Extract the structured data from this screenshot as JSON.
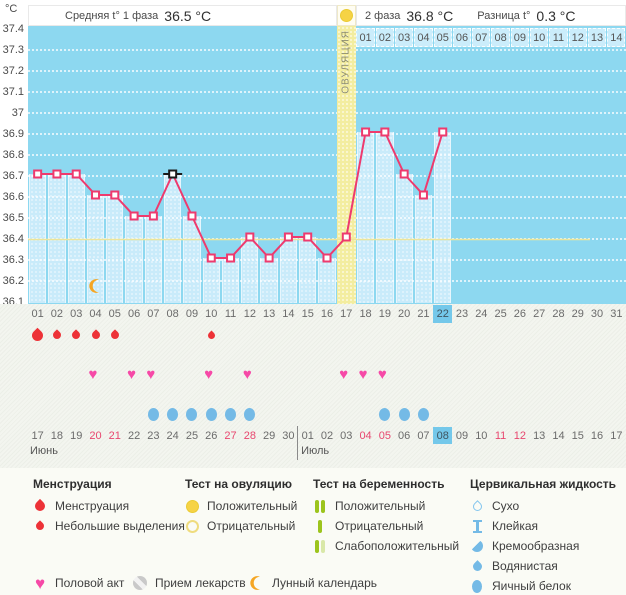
{
  "header": {
    "unit_label": "°C",
    "phase1_label": "Средняя t° 1 фаза",
    "phase1_value": "36.5 °C",
    "phase2_label": "2 фаза",
    "phase2_value": "36.8 °C",
    "diff_label": "Разница t°",
    "diff_value": "0.3 °C"
  },
  "chart_data": {
    "type": "line",
    "ylabel": "°C",
    "ylim": [
      36.1,
      37.4
    ],
    "yticks": [
      "37.4",
      "37.3",
      "37.2",
      "37.1",
      "37",
      "36.9",
      "36.8",
      "36.7",
      "36.6",
      "36.5",
      "36.4",
      "36.3",
      "36.2",
      "36.1"
    ],
    "x_days": [
      "01",
      "02",
      "03",
      "04",
      "05",
      "06",
      "07",
      "08",
      "09",
      "10",
      "11",
      "12",
      "13",
      "14",
      "15",
      "16",
      "17",
      "18",
      "19",
      "20",
      "21",
      "22",
      "23",
      "24",
      "25",
      "26",
      "27",
      "28",
      "29",
      "30",
      "31"
    ],
    "series": [
      {
        "name": "temperature",
        "values": [
          36.7,
          36.7,
          36.7,
          36.6,
          36.6,
          36.5,
          36.5,
          36.7,
          36.5,
          36.3,
          36.3,
          36.4,
          36.3,
          36.4,
          36.4,
          36.3,
          36.4,
          36.9,
          36.9,
          36.7,
          36.6,
          36.9,
          null,
          null,
          null,
          null,
          null,
          null,
          null,
          null,
          null
        ]
      }
    ],
    "excluded_day": 8,
    "ovulation": {
      "day": 17,
      "label": "ОВУЛЯЦИЯ"
    },
    "coverline_temp": 36.4,
    "current_day": 22,
    "phase2_start_day": 18,
    "phase2_days": [
      "01",
      "02",
      "03",
      "04",
      "05",
      "06",
      "07",
      "08",
      "09",
      "10",
      "11",
      "12",
      "13",
      "14"
    ],
    "moon_day": 4,
    "grid": true,
    "legend_position": "bottom"
  },
  "markers": {
    "menstruation": [
      {
        "day": 1,
        "size": "large"
      },
      {
        "day": 2,
        "size": "medium"
      },
      {
        "day": 3,
        "size": "medium"
      },
      {
        "day": 4,
        "size": "medium"
      },
      {
        "day": 5,
        "size": "medium"
      },
      {
        "day": 10,
        "size": "small"
      }
    ],
    "intercourse_days": [
      4,
      6,
      7,
      10,
      12,
      17,
      18,
      19
    ],
    "cervical_fluid_days": [
      7,
      8,
      9,
      10,
      11,
      12,
      19,
      20,
      21
    ]
  },
  "calendar": {
    "months": [
      {
        "name": "Июнь",
        "start_column": 1,
        "days": [
          {
            "label": "17"
          },
          {
            "label": "18"
          },
          {
            "label": "19"
          },
          {
            "label": "20",
            "weekend": true
          },
          {
            "label": "21",
            "weekend": true
          },
          {
            "label": "22"
          },
          {
            "label": "23"
          },
          {
            "label": "24"
          },
          {
            "label": "25"
          },
          {
            "label": "26"
          },
          {
            "label": "27",
            "weekend": true
          },
          {
            "label": "28",
            "weekend": true
          },
          {
            "label": "29"
          },
          {
            "label": "30"
          }
        ]
      },
      {
        "name": "Июль",
        "start_column": 15,
        "days": [
          {
            "label": "01"
          },
          {
            "label": "02"
          },
          {
            "label": "03"
          },
          {
            "label": "04",
            "weekend": true
          },
          {
            "label": "05",
            "weekend": true
          },
          {
            "label": "06"
          },
          {
            "label": "07"
          },
          {
            "label": "08",
            "current": true
          },
          {
            "label": "09"
          },
          {
            "label": "10"
          },
          {
            "label": "11",
            "weekend": true
          },
          {
            "label": "12",
            "weekend": true
          },
          {
            "label": "13"
          },
          {
            "label": "14"
          },
          {
            "label": "15"
          },
          {
            "label": "16"
          },
          {
            "label": "17"
          }
        ]
      }
    ]
  },
  "legend": {
    "groups": [
      {
        "title": "Менструация",
        "items": [
          {
            "icon": "menstruation-icon",
            "label": "Менструация"
          },
          {
            "icon": "spotting-icon",
            "label": "Небольшие выделения"
          }
        ]
      },
      {
        "title": "Тест на овуляцию",
        "items": [
          {
            "icon": "ovulation-positive-icon",
            "label": "Положительный"
          },
          {
            "icon": "ovulation-negative-icon",
            "label": "Отрицательный"
          }
        ]
      },
      {
        "title": "Тест на беременность",
        "items": [
          {
            "icon": "pregnancy-positive-icon",
            "label": "Положительный"
          },
          {
            "icon": "pregnancy-negative-icon",
            "label": "Отрицательный"
          },
          {
            "icon": "pregnancy-weak-icon",
            "label": "Слабоположительный"
          }
        ]
      },
      {
        "title": "Цервикальная жидкость",
        "items": [
          {
            "icon": "fluid-dry-icon",
            "label": "Сухо"
          },
          {
            "icon": "fluid-sticky-icon",
            "label": "Клейкая"
          },
          {
            "icon": "fluid-creamy-icon",
            "label": "Кремообразная"
          },
          {
            "icon": "fluid-watery-icon",
            "label": "Водянистая"
          },
          {
            "icon": "fluid-eggwhite-icon",
            "label": "Яичный белок"
          }
        ]
      }
    ],
    "extra_items": [
      {
        "icon": "intercourse-icon",
        "label": "Половой акт"
      },
      {
        "icon": "medication-icon",
        "label": "Прием лекарств"
      },
      {
        "icon": "lunar-icon",
        "label": "Лунный календарь"
      }
    ]
  },
  "colors": {
    "chart_bg": "#8dd8f0",
    "column_fill": "#c9ebfa",
    "ovulation_band": "#f3eda0",
    "temp_line": "#ee3a6e",
    "excluded_mark": "#1a1a1a",
    "coverline": "#ede59a",
    "current_day_highlight": "#74c8ea",
    "menstruation_red": "#ed3237",
    "intercourse_pink": "#f649a7",
    "fluid_blue": "#74bae6",
    "test_yellow": "#f6d345",
    "pregnancy_green": "#9cc41c",
    "pregnancy_green_light": "#d9e8a8",
    "moon_orange": "#f5a623",
    "weekend_red": "#e8476f"
  }
}
